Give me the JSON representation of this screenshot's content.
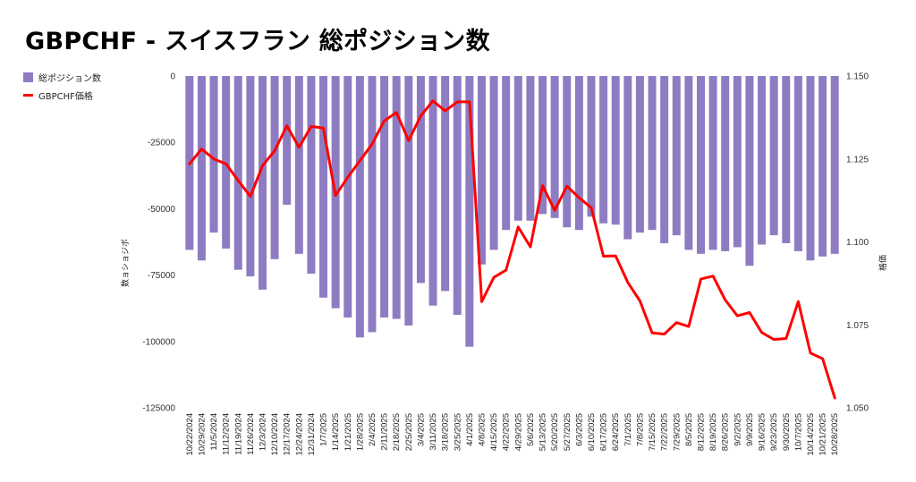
{
  "chart_data": {
    "type": "bar",
    "title": "GBPCHF - スイスフラン 総ポジション数",
    "ylabel_left": "数ョショジポ",
    "ylabel_right": "格価",
    "left_axis": {
      "ylim": [
        -125000,
        0
      ],
      "ticks": [
        0,
        -25000,
        -50000,
        -75000,
        -100000,
        -125000
      ]
    },
    "right_axis": {
      "ylim": [
        1.05,
        1.15
      ],
      "ticks": [
        "1.150",
        "1.125",
        "1.100",
        "1.075",
        "1.050"
      ]
    },
    "categories": [
      "10/22/2024",
      "10/29/2024",
      "11/5/2024",
      "11/12/2024",
      "11/19/2024",
      "11/26/2024",
      "12/3/2024",
      "12/10/2024",
      "12/17/2024",
      "12/24/2024",
      "12/31/2024",
      "1/7/2025",
      "1/14/2025",
      "1/21/2025",
      "1/28/2025",
      "2/4/2025",
      "2/11/2025",
      "2/18/2025",
      "2/25/2025",
      "3/4/2025",
      "3/11/2025",
      "3/18/2025",
      "3/25/2025",
      "4/1/2025",
      "4/8/2025",
      "4/15/2025",
      "4/22/2025",
      "4/29/2025",
      "5/6/2025",
      "5/13/2025",
      "5/20/2025",
      "5/27/2025",
      "6/3/2025",
      "6/10/2025",
      "6/17/2025",
      "6/24/2025",
      "7/1/2025",
      "7/8/2025",
      "7/15/2025",
      "7/22/2025",
      "7/29/2025",
      "8/5/2025",
      "8/12/2025",
      "8/19/2025",
      "8/26/2025",
      "9/2/2025",
      "9/9/2025",
      "9/16/2025",
      "9/23/2025",
      "9/30/2025",
      "10/7/2025",
      "10/14/2025",
      "10/21/2025",
      "10/28/2025"
    ],
    "series": [
      {
        "name": "総ポジション数",
        "type": "bar",
        "axis": "left",
        "color": "#8e7cc3",
        "values": [
          -65500,
          -69500,
          -59000,
          -65000,
          -73000,
          -75500,
          -80500,
          -69000,
          -48500,
          -67000,
          -74500,
          -83500,
          -87500,
          -91000,
          -98500,
          -96500,
          -91000,
          -91500,
          -94000,
          -78000,
          -86500,
          -81000,
          -90000,
          -102000,
          -71000,
          -65500,
          -58000,
          -54500,
          -54500,
          -52000,
          -53500,
          -57000,
          -58000,
          -53000,
          -55500,
          -56000,
          -61500,
          -59000,
          -58000,
          -63000,
          -60000,
          -65500,
          -67000,
          -65500,
          -66000,
          -64500,
          -71500,
          -63500,
          -60000,
          -63000,
          -66000,
          -69500,
          -68000,
          -67000
        ]
      },
      {
        "name": "GBPCHF価格",
        "type": "line",
        "axis": "right",
        "color": "#ff0000",
        "values": [
          1.1235,
          1.128,
          1.125,
          1.1235,
          1.1185,
          1.1137,
          1.123,
          1.1275,
          1.135,
          1.1285,
          1.1348,
          1.1343,
          1.114,
          1.1195,
          1.1245,
          1.1295,
          1.1365,
          1.139,
          1.1305,
          1.138,
          1.1425,
          1.1395,
          1.1422,
          1.1422,
          1.082,
          1.0893,
          1.0915,
          1.1045,
          1.0985,
          1.117,
          1.1095,
          1.1168,
          1.1133,
          1.1103,
          1.0957,
          1.0958,
          1.0878,
          1.0822,
          1.0726,
          1.0722,
          1.0757,
          1.0745,
          1.0888,
          1.0897,
          1.0825,
          1.0777,
          1.0787,
          1.0727,
          1.0706,
          1.0709,
          1.082,
          1.0665,
          1.0648,
          1.053
        ]
      }
    ],
    "legend": "top-left",
    "grid": false
  }
}
